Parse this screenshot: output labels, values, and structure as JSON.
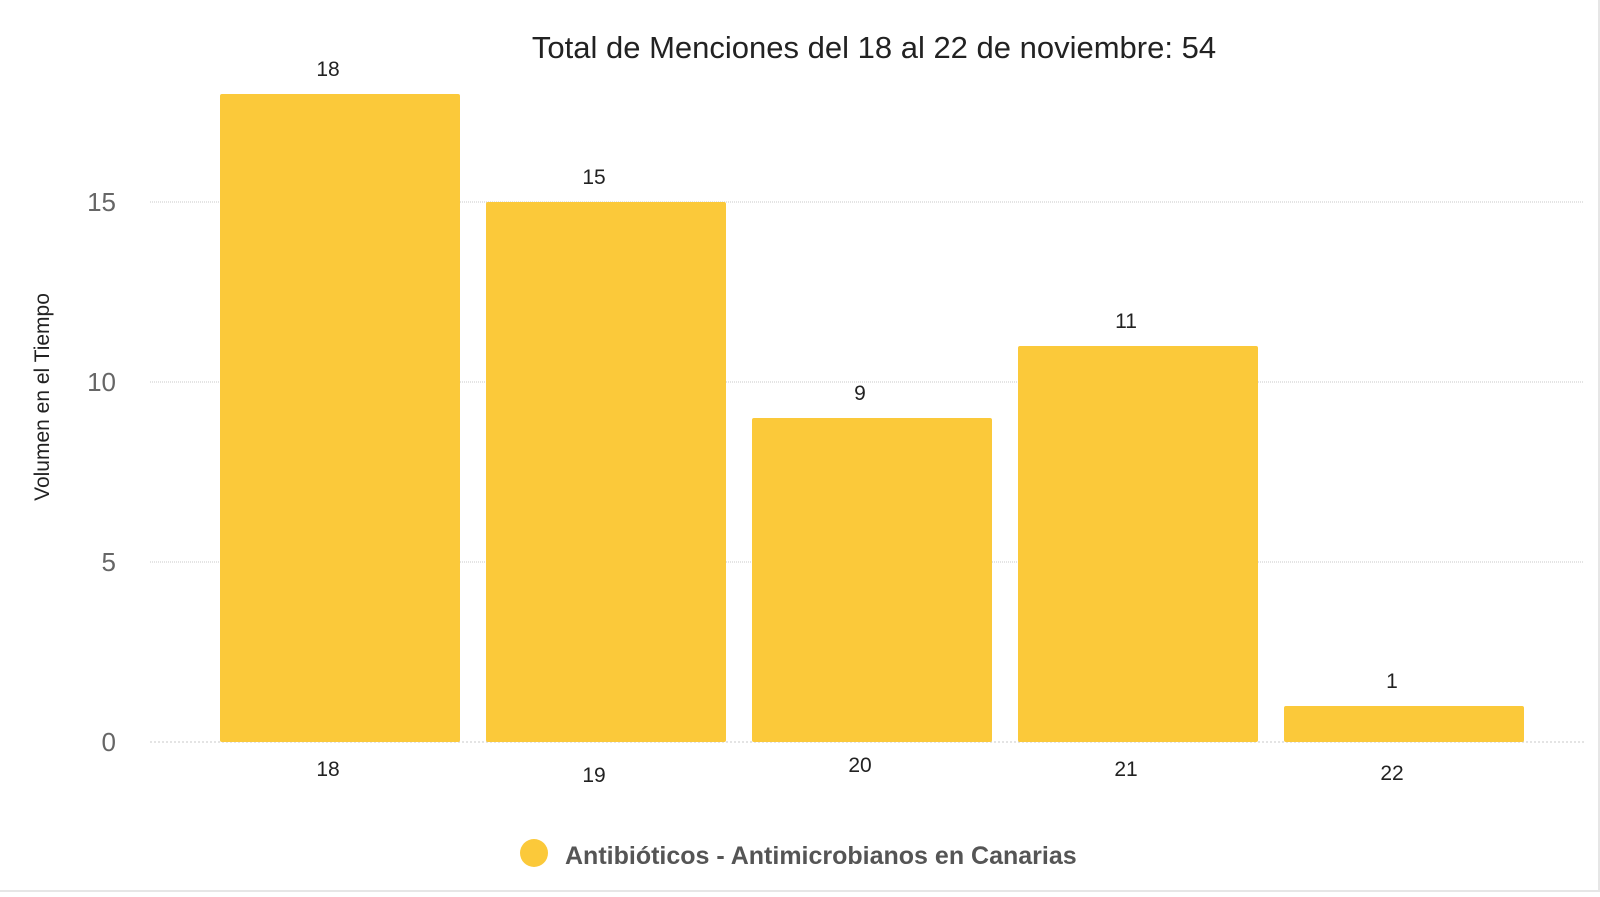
{
  "chart_data": {
    "type": "bar",
    "title": "Total de Menciones del 18 al 22 de noviembre: 54",
    "xlabel": "",
    "ylabel": "Volumen en el Tiempo",
    "categories": [
      "18",
      "19",
      "20",
      "21",
      "22"
    ],
    "series": [
      {
        "name": "Antibióticos - Antimicrobianos en Canarias",
        "values": [
          18,
          15,
          9,
          11,
          1
        ],
        "color": "#FBC93A"
      }
    ],
    "ylim": [
      0,
      18
    ],
    "yticks": [
      0,
      5,
      10,
      15
    ],
    "grid": true,
    "data_labels": true,
    "legend_position": "bottom"
  }
}
